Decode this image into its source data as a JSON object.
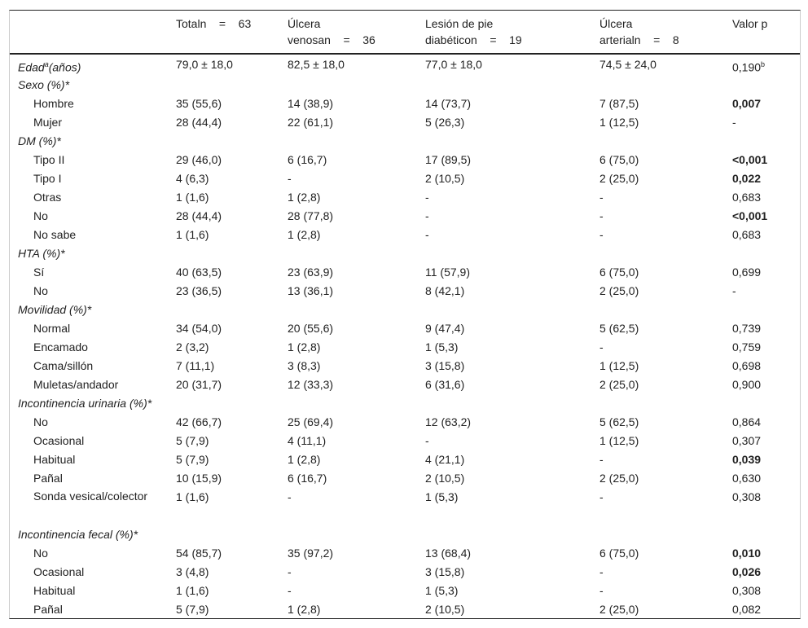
{
  "headers": [
    "",
    "Totaln    =    63",
    "Úlcera venosan    =    36",
    "Lesión de pie diabéticon    =    19",
    "Úlcera arterialn    =    8",
    "Valor p"
  ],
  "rows": [
    {
      "label": "Edad",
      "label_sup": "a",
      "label_suffix": "(años)",
      "type": "cat",
      "cells": [
        "79,0 ± 18,0",
        "82,5 ± 18,0",
        "77,0 ± 18,0",
        "74,5 ± 24,0",
        "0,190"
      ],
      "p_sup": "b"
    },
    {
      "label": "Sexo (%)*",
      "type": "cat",
      "cells": [
        "",
        "",
        "",
        "",
        ""
      ]
    },
    {
      "label": "Hombre",
      "type": "sub",
      "cells": [
        "35 (55,6)",
        "14 (38,9)",
        "14 (73,7)",
        "7 (87,5)",
        "0,007"
      ],
      "bold": true
    },
    {
      "label": "Mujer",
      "type": "sub",
      "cells": [
        "28 (44,4)",
        "22 (61,1)",
        "5 (26,3)",
        "1 (12,5)",
        "-"
      ]
    },
    {
      "label": "DM (%)*",
      "type": "cat",
      "cells": [
        "",
        "",
        "",
        "",
        ""
      ]
    },
    {
      "label": "Tipo II",
      "type": "sub",
      "cells": [
        "29 (46,0)",
        "6 (16,7)",
        "17 (89,5)",
        "6 (75,0)",
        "<0,001"
      ],
      "bold": true
    },
    {
      "label": "Tipo I",
      "type": "sub",
      "cells": [
        "4 (6,3)",
        "-",
        "2 (10,5)",
        "2 (25,0)",
        "0,022"
      ],
      "bold": true
    },
    {
      "label": "Otras",
      "type": "sub",
      "cells": [
        "1 (1,6)",
        "1 (2,8)",
        "-",
        "-",
        "0,683"
      ]
    },
    {
      "label": "No",
      "type": "sub",
      "cells": [
        "28 (44,4)",
        "28 (77,8)",
        "-",
        "-",
        "<0,001"
      ],
      "bold": true
    },
    {
      "label": "No sabe",
      "type": "sub",
      "cells": [
        "1 (1,6)",
        "1 (2,8)",
        "-",
        "-",
        "0,683"
      ]
    },
    {
      "label": "HTA (%)*",
      "type": "cat",
      "cells": [
        "",
        "",
        "",
        "",
        ""
      ]
    },
    {
      "label": "Sí",
      "type": "sub",
      "cells": [
        "40 (63,5)",
        "23 (63,9)",
        "11 (57,9)",
        "6 (75,0)",
        "0,699"
      ]
    },
    {
      "label": "No",
      "type": "sub",
      "cells": [
        "23 (36,5)",
        "13 (36,1)",
        "8 (42,1)",
        "2 (25,0)",
        "-"
      ]
    },
    {
      "label": "Movilidad (%)*",
      "type": "cat",
      "cells": [
        "",
        "",
        "",
        "",
        ""
      ]
    },
    {
      "label": "Normal",
      "type": "sub",
      "cells": [
        "34 (54,0)",
        "20 (55,6)",
        "9 (47,4)",
        "5 (62,5)",
        "0,739"
      ]
    },
    {
      "label": "Encamado",
      "type": "sub",
      "cells": [
        "2 (3,2)",
        "1 (2,8)",
        "1 (5,3)",
        "-",
        "0,759"
      ]
    },
    {
      "label": "Cama/sillón",
      "type": "sub",
      "cells": [
        "7 (11,1)",
        "3 (8,3)",
        "3 (15,8)",
        "1 (12,5)",
        "0,698"
      ]
    },
    {
      "label": "Muletas/andador",
      "type": "sub",
      "cells": [
        "20 (31,7)",
        "12 (33,3)",
        "6 (31,6)",
        "2 (25,0)",
        "0,900"
      ]
    },
    {
      "label": "Incontinencia urinaria (%)*",
      "type": "cat",
      "cells": [
        "",
        "",
        "",
        "",
        ""
      ]
    },
    {
      "label": "No",
      "type": "sub",
      "cells": [
        "42 (66,7)",
        "25 (69,4)",
        "12 (63,2)",
        "5 (62,5)",
        "0,864"
      ]
    },
    {
      "label": "Ocasional",
      "type": "sub",
      "cells": [
        "5 (7,9)",
        "4 (11,1)",
        "-",
        "1 (12,5)",
        "0,307"
      ]
    },
    {
      "label": "Habitual",
      "type": "sub",
      "cells": [
        "5 (7,9)",
        "1 (2,8)",
        "4 (21,1)",
        "-",
        "0,039"
      ],
      "bold": true
    },
    {
      "label": "Pañal",
      "type": "sub",
      "cells": [
        "10 (15,9)",
        "6 (16,7)",
        "2 (10,5)",
        "2 (25,0)",
        "0,630"
      ]
    },
    {
      "label": "Sonda vesical/colector",
      "type": "sub",
      "wrap": true,
      "cells": [
        "1 (1,6)",
        "-",
        "1 (5,3)",
        "-",
        "0,308"
      ]
    },
    {
      "label": "Incontinencia fecal (%)*",
      "type": "cat",
      "cells": [
        "",
        "",
        "",
        "",
        ""
      ]
    },
    {
      "label": "No",
      "type": "sub",
      "cells": [
        "54 (85,7)",
        "35 (97,2)",
        "13 (68,4)",
        "6 (75,0)",
        "0,010"
      ],
      "bold": true
    },
    {
      "label": "Ocasional",
      "type": "sub",
      "cells": [
        "3 (4,8)",
        "-",
        "3 (15,8)",
        "-",
        "0,026"
      ],
      "bold": true
    },
    {
      "label": "Habitual",
      "type": "sub",
      "cells": [
        "1 (1,6)",
        "-",
        "1 (5,3)",
        "-",
        "0,308"
      ]
    },
    {
      "label": "Pañal",
      "type": "sub",
      "cells": [
        "5 (7,9)",
        "1 (2,8)",
        "2 (10,5)",
        "2 (25,0)",
        "0,082"
      ]
    }
  ]
}
